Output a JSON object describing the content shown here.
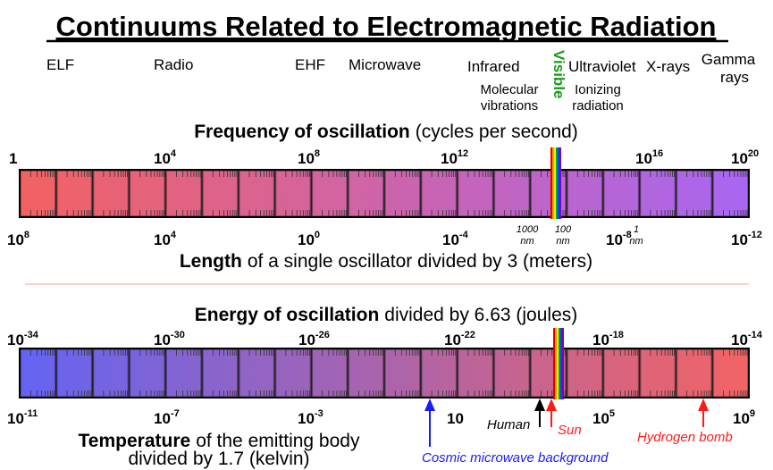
{
  "title": "Continuums Related to Electromagnetic Radiation",
  "bands": {
    "elf": "ELF",
    "radio": "Radio",
    "ehf": "EHF",
    "microwave": "Microwave",
    "infrared": "Infrared",
    "visible": "Visible",
    "ultraviolet": "Ultraviolet",
    "xrays": "X-rays",
    "gamma": [
      "Gamma",
      "rays"
    ]
  },
  "sublabels": {
    "molecular": [
      "Molecular",
      "vibrations"
    ],
    "ionizing": [
      "Ionizing",
      "radiation"
    ]
  },
  "frequency_label": {
    "bold": "Frequency of oscillation",
    "rest": "(cycles per second)"
  },
  "frequency_ticks": [
    {
      "base": "1"
    },
    {
      "base": "10",
      "exp": "4"
    },
    {
      "base": "10",
      "exp": "8"
    },
    {
      "base": "10",
      "exp": "12"
    },
    {
      "base": "10",
      "exp": "16"
    },
    {
      "base": "10",
      "exp": "20"
    }
  ],
  "length_ticks": [
    {
      "base": "10",
      "exp": "8"
    },
    {
      "base": "10",
      "exp": "4"
    },
    {
      "base": "10",
      "exp": "0"
    },
    {
      "base": "10",
      "exp": "-4"
    },
    {
      "base": "10",
      "exp": "-8"
    },
    {
      "base": "10",
      "exp": "-12"
    }
  ],
  "length_nm_labels": [
    [
      "1000",
      "nm"
    ],
    [
      "100",
      "nm"
    ],
    [
      "1",
      "nm"
    ]
  ],
  "length_label": {
    "bold": "Length",
    "rest": "of a single oscillator divided by 3 (meters)"
  },
  "energy_label": {
    "bold": "Energy of oscillation",
    "rest": "divided by 6.63 (joules)"
  },
  "energy_ticks": [
    {
      "base": "10",
      "exp": "-34"
    },
    {
      "base": "10",
      "exp": "-30"
    },
    {
      "base": "10",
      "exp": "-26"
    },
    {
      "base": "10",
      "exp": "-22"
    },
    {
      "base": "10",
      "exp": "-18"
    },
    {
      "base": "10",
      "exp": "-14"
    }
  ],
  "temperature_ticks": [
    {
      "base": "10",
      "exp": "-11"
    },
    {
      "base": "10",
      "exp": "-7"
    },
    {
      "base": "10",
      "exp": "-3"
    },
    {
      "base": "10"
    },
    {
      "base": "10",
      "exp": "5"
    },
    {
      "base": "10",
      "exp": "9"
    }
  ],
  "temperature_label": {
    "bold": "Temperature",
    "rest": "of the emitting body",
    "line2": "divided by 1.7 (kelvin)"
  },
  "annotations": {
    "cmb": "Cosmic microwave background",
    "human": "Human",
    "sun": "Sun",
    "hbomb": "Hydrogen bomb"
  }
}
